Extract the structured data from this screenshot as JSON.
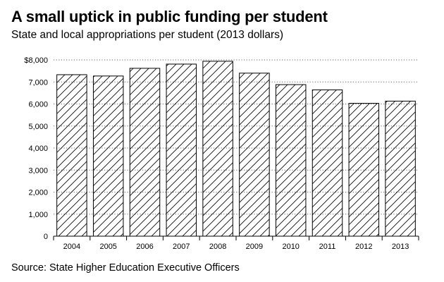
{
  "header": {
    "title": "A small uptick in public funding per student",
    "subtitle": "State and local appropriations per student (2013 dollars)"
  },
  "footer": {
    "source": "Source: State Higher Education Executive Officers"
  },
  "chart_data": {
    "type": "bar",
    "title": "A small uptick in public funding per student",
    "subtitle": "State and local appropriations per student (2013 dollars)",
    "categories": [
      "2004",
      "2005",
      "2006",
      "2007",
      "2008",
      "2009",
      "2010",
      "2011",
      "2012",
      "2013"
    ],
    "values": [
      7330,
      7270,
      7620,
      7810,
      7940,
      7400,
      6880,
      6640,
      6030,
      6130
    ],
    "ylim": [
      0,
      8000
    ],
    "yticks": [
      0,
      1000,
      2000,
      3000,
      4000,
      5000,
      6000,
      7000,
      8000
    ],
    "ytick_labels": [
      "0",
      "1,000",
      "2,000",
      "3,000",
      "4,000",
      "5,000",
      "6,000",
      "7,000",
      "$8,000"
    ],
    "grid": true,
    "bar_fill": "diagonal-hatch",
    "colors": {
      "bar_stroke": "#000000",
      "grid": "#666666",
      "hatch": "#000000"
    }
  }
}
